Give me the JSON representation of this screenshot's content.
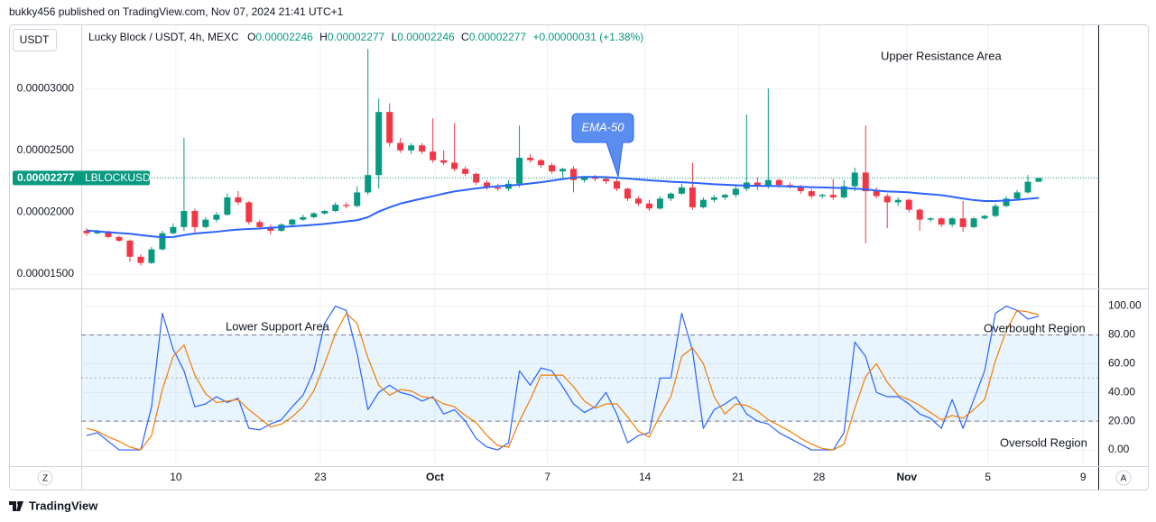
{
  "header": {
    "byline": "bukky456 published on TradingView.com, Nov 07, 2024 21:41 UTC+1",
    "currency": "USDT"
  },
  "legend": {
    "title": "Lucky Block / USDT, 4h, MEXC",
    "items": [
      {
        "key": "O",
        "value": "0.00002246"
      },
      {
        "key": "H",
        "value": "0.00002277"
      },
      {
        "key": "L",
        "value": "0.00002246"
      },
      {
        "key": "C",
        "value": "0.00002277"
      }
    ],
    "change": "+0.00000031 (+1.38%)"
  },
  "controls": {
    "left": "Z",
    "right": "A"
  },
  "footer": {
    "brand": "TradingView"
  },
  "chart_data": [
    {
      "type": "candlestick",
      "up_color": "#089981",
      "down_color": "#f23645",
      "xlim": [
        -0.5,
        93.5
      ],
      "xticks": [
        {
          "value": 8.25,
          "label": "10"
        },
        {
          "value": 21.6,
          "label": "23"
        },
        {
          "value": 32.2,
          "label": "Oct"
        },
        {
          "value": 42.6,
          "label": "7"
        },
        {
          "value": 51.6,
          "label": "14"
        },
        {
          "value": 60.2,
          "label": "21"
        },
        {
          "value": 67.7,
          "label": "28"
        },
        {
          "value": 75.8,
          "label": "Nov"
        },
        {
          "value": 83.3,
          "label": "5"
        },
        {
          "value": 92.1,
          "label": "9"
        }
      ],
      "ylim": [
        1.398e-05,
        3.511e-05
      ],
      "yticks": [
        {
          "value": 1.5e-05,
          "label": "0.00001500"
        },
        {
          "value": 2e-05,
          "label": "0.00002000"
        },
        {
          "value": 2.5e-05,
          "label": "0.00002500"
        },
        {
          "value": 3e-05,
          "label": "0.00003000"
        }
      ],
      "grid": true,
      "price_marker": {
        "value": 2.277e-05,
        "label": "0.00002277",
        "symbol": "LBLOCKUSDT",
        "color": "#089981"
      },
      "annotations": [
        "Upper Resistance Area"
      ],
      "open": [
        1.85e-05,
        1.83e-05,
        1.845e-05,
        1.8e-05,
        1.77e-05,
        1.64e-05,
        1.59e-05,
        1.7e-05,
        1.83e-05,
        1.88e-05,
        2.01e-05,
        1.88e-05,
        1.94e-05,
        1.98e-05,
        2.12e-05,
        2.08e-05,
        1.92e-05,
        1.88e-05,
        1.85e-05,
        1.9e-05,
        1.94e-05,
        1.96e-05,
        1.99e-05,
        2.01e-05,
        2.06e-05,
        2.05e-05,
        2.16e-05,
        2.3e-05,
        2.81e-05,
        2.56e-05,
        2.5e-05,
        2.54e-05,
        2.49e-05,
        2.42e-05,
        2.4e-05,
        2.35e-05,
        2.31e-05,
        2.24e-05,
        2.2e-05,
        2.19e-05,
        2.23e-05,
        2.44e-05,
        2.42e-05,
        2.38e-05,
        2.33e-05,
        2.35e-05,
        2.26e-05,
        2.28e-05,
        2.27e-05,
        2.25e-05,
        2.19e-05,
        2.11e-05,
        2.07e-05,
        2.03e-05,
        2.11e-05,
        2.15e-05,
        2.2e-05,
        2.04e-05,
        2.1e-05,
        2.12e-05,
        2.14e-05,
        2.19e-05,
        2.24e-05,
        2.21e-05,
        2.26e-05,
        2.22e-05,
        2.21e-05,
        2.17e-05,
        2.13e-05,
        2.14e-05,
        2.12e-05,
        2.21e-05,
        2.32e-05,
        2.17e-05,
        2.13e-05,
        2.08e-05,
        2.1e-05,
        2.02e-05,
        1.94e-05,
        1.95e-05,
        1.9e-05,
        1.95e-05,
        1.88e-05,
        1.95e-05,
        1.97e-05,
        2.05e-05,
        2.11e-05,
        2.16e-05,
        2.246e-05
      ],
      "high": [
        1.87e-05,
        1.86e-05,
        1.85e-05,
        1.81e-05,
        1.78e-05,
        1.66e-05,
        1.72e-05,
        1.85e-05,
        1.91e-05,
        2.6e-05,
        2.03e-05,
        1.96e-05,
        2e-05,
        2.15e-05,
        2.17e-05,
        2.09e-05,
        1.94e-05,
        1.9e-05,
        1.91e-05,
        1.95e-05,
        1.98e-05,
        2e-05,
        2.02e-05,
        2.08e-05,
        2.08e-05,
        2.21e-05,
        3.32e-05,
        2.92e-05,
        2.88e-05,
        2.6e-05,
        2.56e-05,
        2.56e-05,
        2.76e-05,
        2.5e-05,
        2.72e-05,
        2.37e-05,
        2.32e-05,
        2.26e-05,
        2.23e-05,
        2.26e-05,
        2.7e-05,
        2.47e-05,
        2.43e-05,
        2.4e-05,
        2.36e-05,
        2.37e-05,
        2.29e-05,
        2.3e-05,
        2.29e-05,
        2.27e-05,
        2.2e-05,
        2.13e-05,
        2.1e-05,
        2.13e-05,
        2.16e-05,
        2.23e-05,
        2.4e-05,
        2.12e-05,
        2.14e-05,
        2.15e-05,
        2.22e-05,
        2.79e-05,
        2.28e-05,
        3e-05,
        2.27e-05,
        2.24e-05,
        2.22e-05,
        2.19e-05,
        2.15e-05,
        2.27e-05,
        2.26e-05,
        2.36e-05,
        2.7e-05,
        2.2e-05,
        2.15e-05,
        2.12e-05,
        2.11e-05,
        2.03e-05,
        1.96e-05,
        1.96e-05,
        1.96e-05,
        2.09e-05,
        1.96e-05,
        1.98e-05,
        2.07e-05,
        2.13e-05,
        2.18e-05,
        2.3e-05,
        2.277e-05
      ],
      "low": [
        1.81e-05,
        1.82e-05,
        1.79e-05,
        1.76e-05,
        1.6e-05,
        1.57e-05,
        1.58e-05,
        1.69e-05,
        1.82e-05,
        1.85e-05,
        1.84e-05,
        1.87e-05,
        1.92e-05,
        1.97e-05,
        2.06e-05,
        1.9e-05,
        1.86e-05,
        1.82e-05,
        1.84e-05,
        1.89e-05,
        1.93e-05,
        1.95e-05,
        1.98e-05,
        2e-05,
        2.03e-05,
        2.04e-05,
        2.14e-05,
        2.19e-05,
        2.53e-05,
        2.48e-05,
        2.47e-05,
        2.47e-05,
        2.4e-05,
        2.38e-05,
        2.33e-05,
        2.29e-05,
        2.22e-05,
        2.18e-05,
        2.17e-05,
        2.17e-05,
        2.2e-05,
        2.4e-05,
        2.36e-05,
        2.31e-05,
        2.28e-05,
        2.16e-05,
        2.24e-05,
        2.25e-05,
        2.23e-05,
        2.17e-05,
        2.09e-05,
        2.05e-05,
        2.01e-05,
        2.02e-05,
        2.09e-05,
        2.14e-05,
        2.02e-05,
        2.03e-05,
        2.08e-05,
        2.1e-05,
        2.12e-05,
        2.17e-05,
        2.18e-05,
        2.19e-05,
        2.2e-05,
        2.19e-05,
        2.15e-05,
        2.11e-05,
        2.11e-05,
        2.1e-05,
        2.11e-05,
        2.17e-05,
        1.75e-05,
        2.11e-05,
        1.87e-05,
        2.05e-05,
        2e-05,
        1.85e-05,
        1.92e-05,
        1.88e-05,
        1.88e-05,
        1.84e-05,
        1.87e-05,
        1.94e-05,
        1.96e-05,
        2.04e-05,
        2.1e-05,
        2.15e-05,
        2.246e-05
      ],
      "close": [
        1.83e-05,
        1.845e-05,
        1.8e-05,
        1.77e-05,
        1.64e-05,
        1.59e-05,
        1.7e-05,
        1.83e-05,
        1.88e-05,
        2.01e-05,
        1.88e-05,
        1.94e-05,
        1.98e-05,
        2.12e-05,
        2.08e-05,
        1.92e-05,
        1.88e-05,
        1.85e-05,
        1.9e-05,
        1.94e-05,
        1.96e-05,
        1.99e-05,
        2.01e-05,
        2.06e-05,
        2.05e-05,
        2.16e-05,
        2.3e-05,
        2.81e-05,
        2.56e-05,
        2.5e-05,
        2.54e-05,
        2.49e-05,
        2.42e-05,
        2.4e-05,
        2.35e-05,
        2.31e-05,
        2.24e-05,
        2.2e-05,
        2.19e-05,
        2.23e-05,
        2.44e-05,
        2.42e-05,
        2.38e-05,
        2.33e-05,
        2.35e-05,
        2.26e-05,
        2.28e-05,
        2.27e-05,
        2.25e-05,
        2.19e-05,
        2.11e-05,
        2.07e-05,
        2.03e-05,
        2.11e-05,
        2.15e-05,
        2.2e-05,
        2.04e-05,
        2.1e-05,
        2.12e-05,
        2.14e-05,
        2.19e-05,
        2.24e-05,
        2.21e-05,
        2.26e-05,
        2.22e-05,
        2.21e-05,
        2.17e-05,
        2.13e-05,
        2.14e-05,
        2.12e-05,
        2.21e-05,
        2.32e-05,
        2.17e-05,
        2.13e-05,
        2.08e-05,
        2.1e-05,
        2.02e-05,
        1.94e-05,
        1.95e-05,
        1.9e-05,
        1.95e-05,
        1.88e-05,
        1.95e-05,
        1.97e-05,
        2.05e-05,
        2.11e-05,
        2.16e-05,
        2.246e-05,
        2.277e-05
      ],
      "series": [
        {
          "name": "EMA-50",
          "color": "#2962ff",
          "values": [
            1.852e-05,
            1.845e-05,
            1.838e-05,
            1.832e-05,
            1.826e-05,
            1.815e-05,
            1.805e-05,
            1.797e-05,
            1.8e-05,
            1.815e-05,
            1.828e-05,
            1.835e-05,
            1.842e-05,
            1.852e-05,
            1.86e-05,
            1.864e-05,
            1.868e-05,
            1.874e-05,
            1.88e-05,
            1.886e-05,
            1.892e-05,
            1.898e-05,
            1.905e-05,
            1.915e-05,
            1.925e-05,
            1.935e-05,
            1.96e-05,
            2.005e-05,
            2.04e-05,
            2.07e-05,
            2.09e-05,
            2.11e-05,
            2.13e-05,
            2.15e-05,
            2.168e-05,
            2.18e-05,
            2.192e-05,
            2.202e-05,
            2.21e-05,
            2.215e-05,
            2.222e-05,
            2.232e-05,
            2.242e-05,
            2.255e-05,
            2.268e-05,
            2.28e-05,
            2.285e-05,
            2.285e-05,
            2.283e-05,
            2.278e-05,
            2.272e-05,
            2.265e-05,
            2.258e-05,
            2.252e-05,
            2.246e-05,
            2.242e-05,
            2.238e-05,
            2.232e-05,
            2.226e-05,
            2.222e-05,
            2.218e-05,
            2.215e-05,
            2.213e-05,
            2.212e-05,
            2.211e-05,
            2.208e-05,
            2.205e-05,
            2.202e-05,
            2.2e-05,
            2.198e-05,
            2.195e-05,
            2.19e-05,
            2.185e-05,
            2.175e-05,
            2.168e-05,
            2.165e-05,
            2.16e-05,
            2.152e-05,
            2.145e-05,
            2.138e-05,
            2.125e-05,
            2.11e-05,
            2.098e-05,
            2.09e-05,
            2.09e-05,
            2.095e-05,
            2.1e-05,
            2.108e-05,
            2.116e-05
          ]
        }
      ]
    },
    {
      "type": "line",
      "xlim": [
        -0.5,
        93.5
      ],
      "ylim": [
        -10,
        111
      ],
      "yticks": [
        {
          "value": 0,
          "label": "0.00"
        },
        {
          "value": 20,
          "label": "20.00"
        },
        {
          "value": 40,
          "label": "40.00"
        },
        {
          "value": 60,
          "label": "60.00"
        },
        {
          "value": 80,
          "label": "80.00"
        },
        {
          "value": 100,
          "label": "100.00"
        }
      ],
      "grid": true,
      "band": [
        20,
        80
      ],
      "band_color": "#2196f3",
      "midline": 50,
      "annotations": [
        "Lower Support Area",
        "Overbought Region",
        "Oversold Region"
      ],
      "series": [
        {
          "color": "#2962ff",
          "values": [
            10,
            12,
            6,
            0,
            0,
            0,
            30,
            95,
            70,
            55,
            30,
            32,
            37,
            33,
            36,
            15,
            14,
            18,
            21,
            30,
            38,
            55,
            88,
            100,
            97,
            67,
            28,
            40,
            45,
            40,
            38,
            34,
            37,
            25,
            28,
            20,
            8,
            2,
            0,
            5,
            55,
            45,
            57,
            55,
            44,
            32,
            26,
            30,
            40,
            25,
            5,
            10,
            12,
            50,
            50,
            95,
            69,
            15,
            28,
            32,
            37,
            25,
            20,
            18,
            12,
            8,
            4,
            0,
            0,
            0,
            12,
            75,
            65,
            40,
            37,
            37,
            32,
            25,
            22,
            15,
            35,
            15,
            35,
            55,
            95,
            100,
            97,
            91,
            93
          ]
        },
        {
          "color": "#f57c00",
          "values": [
            15,
            13,
            9,
            6,
            2,
            0,
            10,
            42,
            65,
            73,
            52,
            39,
            33,
            34,
            35,
            28,
            22,
            16,
            18,
            23,
            30,
            41,
            60,
            81,
            95,
            88,
            64,
            45,
            38,
            42,
            41,
            37,
            36,
            32,
            30,
            24,
            19,
            10,
            3,
            2,
            20,
            35,
            52,
            52,
            52,
            44,
            34,
            29,
            32,
            32,
            23,
            13,
            9,
            24,
            37,
            65,
            71,
            60,
            37,
            25,
            32,
            31,
            27,
            21,
            17,
            13,
            8,
            4,
            1,
            0,
            4,
            29,
            51,
            60,
            47,
            38,
            35,
            31,
            26,
            21,
            24,
            22,
            28,
            35,
            62,
            83,
            97,
            96,
            94
          ]
        }
      ]
    }
  ]
}
